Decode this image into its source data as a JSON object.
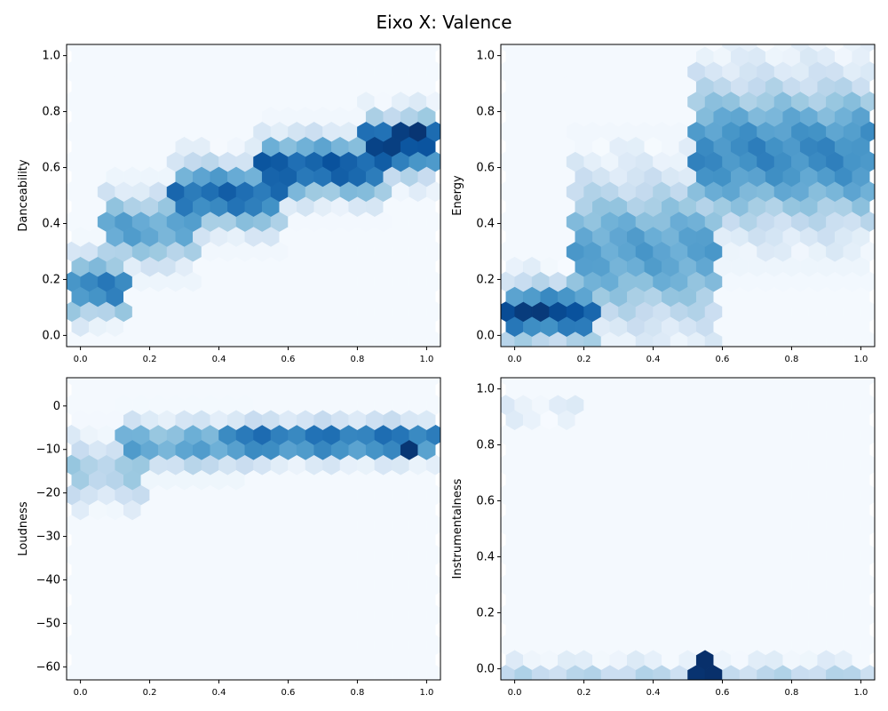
{
  "figure": {
    "suptitle": "Eixo X: Valence"
  },
  "chart_data": [
    {
      "type": "heatmap",
      "subtype": "hexbin",
      "colormap": "Blues",
      "title": "",
      "xlabel": "",
      "ylabel": "Danceability",
      "xlim": [
        -0.04,
        1.04
      ],
      "ylim": [
        -0.04,
        1.04
      ],
      "xticks": [
        "0.0",
        "0.2",
        "0.4",
        "0.6",
        "0.8",
        "1.0"
      ],
      "yticks": [
        "0.0",
        "0.2",
        "0.4",
        "0.6",
        "0.8",
        "1.0"
      ],
      "density_bands": [
        {
          "x": [
            0.0,
            0.1
          ],
          "y_peak": 0.17,
          "y_spread": 0.1,
          "peak": 0.7
        },
        {
          "x": [
            0.1,
            0.3
          ],
          "y_peak": 0.38,
          "y_spread": 0.12,
          "peak": 0.55
        },
        {
          "x": [
            0.3,
            0.55
          ],
          "y_peak": 0.5,
          "y_spread": 0.11,
          "peak": 0.78
        },
        {
          "x": [
            0.55,
            0.85
          ],
          "y_peak": 0.6,
          "y_spread": 0.1,
          "peak": 0.85
        },
        {
          "x": [
            0.85,
            1.0
          ],
          "y_peak": 0.68,
          "y_spread": 0.1,
          "peak": 0.9
        }
      ],
      "max_cell": {
        "x": 0.95,
        "y": 0.72
      }
    },
    {
      "type": "heatmap",
      "subtype": "hexbin",
      "colormap": "Blues",
      "title": "",
      "xlabel": "",
      "ylabel": "Energy",
      "xlim": [
        -0.04,
        1.04
      ],
      "ylim": [
        -0.04,
        1.04
      ],
      "xticks": [
        "0.0",
        "0.2",
        "0.4",
        "0.6",
        "0.8",
        "1.0"
      ],
      "yticks": [
        "0.0",
        "0.2",
        "0.4",
        "0.6",
        "0.8",
        "1.0"
      ],
      "density_bands": [
        {
          "x": [
            0.0,
            0.2
          ],
          "y_peak": 0.08,
          "y_spread": 0.1,
          "peak": 0.85
        },
        {
          "x": [
            0.2,
            0.55
          ],
          "y_peak": 0.3,
          "y_spread": 0.25,
          "peak": 0.55
        },
        {
          "x": [
            0.55,
            1.0
          ],
          "y_peak": 0.65,
          "y_spread": 0.25,
          "peak": 0.65
        }
      ],
      "max_cell": {
        "x": 0.05,
        "y": 0.09
      }
    },
    {
      "type": "heatmap",
      "subtype": "hexbin",
      "colormap": "Blues",
      "title": "",
      "xlabel": "",
      "ylabel": "Loudness",
      "xlim": [
        -0.04,
        1.04
      ],
      "ylim": [
        -63,
        6.5
      ],
      "xticks": [
        "0.0",
        "0.2",
        "0.4",
        "0.6",
        "0.8",
        "1.0"
      ],
      "yticks": [
        "−60",
        "−50",
        "−40",
        "−30",
        "−20",
        "−10",
        "0"
      ],
      "ytick_values": [
        -60,
        -50,
        -40,
        -30,
        -20,
        -10,
        0
      ],
      "density_bands": [
        {
          "x": [
            0.0,
            0.15
          ],
          "y_peak": -15,
          "y_spread": 7,
          "peak": 0.35
        },
        {
          "x": [
            0.15,
            0.45
          ],
          "y_peak": -9,
          "y_spread": 5,
          "peak": 0.55
        },
        {
          "x": [
            0.45,
            1.0
          ],
          "y_peak": -8,
          "y_spread": 4,
          "peak": 0.8
        }
      ],
      "max_cell": {
        "x": 0.95,
        "y": -8.5
      }
    },
    {
      "type": "heatmap",
      "subtype": "hexbin",
      "colormap": "Blues",
      "title": "",
      "xlabel": "",
      "ylabel": "Instrumentalness",
      "xlim": [
        -0.04,
        1.04
      ],
      "ylim": [
        -0.04,
        1.04
      ],
      "xticks": [
        "0.0",
        "0.2",
        "0.4",
        "0.6",
        "0.8",
        "1.0"
      ],
      "yticks": [
        "0.0",
        "0.2",
        "0.4",
        "0.6",
        "0.8",
        "1.0"
      ],
      "density_bands": [
        {
          "x": [
            0.0,
            1.0
          ],
          "y_peak": 0.0,
          "y_spread": 0.02,
          "peak": 0.9
        },
        {
          "x": [
            0.0,
            0.15
          ],
          "y_peak": 0.92,
          "y_spread": 0.04,
          "peak": 0.12
        }
      ],
      "max_cell": {
        "x": 0.55,
        "y": 0.0
      }
    }
  ]
}
